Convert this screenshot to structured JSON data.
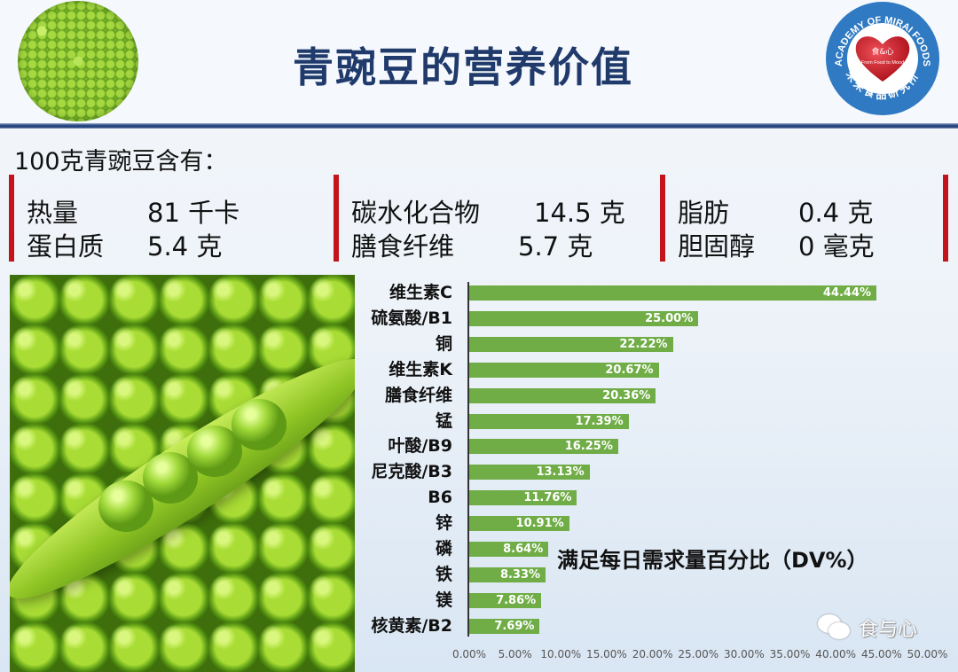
{
  "header": {
    "title": "青豌豆的营养价值",
    "logo": {
      "arc_text_top": "ACADEMY OF MIRAI FOODS",
      "arc_text_bottom": "未来食品研究所",
      "heart_text_cn": "食&心",
      "heart_text_en": "From Food to Mood"
    }
  },
  "nutrition": {
    "heading": "100克青豌豆含有：",
    "groups": [
      {
        "rows": [
          {
            "name": "热量",
            "value": "81 千卡"
          },
          {
            "name": "蛋白质",
            "value": "5.4 克"
          }
        ]
      },
      {
        "rows": [
          {
            "name": "碳水化合物",
            "value": "14.5 克"
          },
          {
            "name": "膳食纤维",
            "value": "5.7 克"
          }
        ]
      },
      {
        "rows": [
          {
            "name": "脂肪",
            "value": "0.4 克"
          },
          {
            "name": "胆固醇",
            "value": "0 毫克"
          }
        ]
      }
    ]
  },
  "chart_data": {
    "type": "bar",
    "orientation": "horizontal",
    "title": "满足每日需求量百分比（DV%）",
    "xlabel": "",
    "ylabel": "",
    "categories": [
      "维生素C",
      "硫氨酸/B1",
      "铜",
      "维生素K",
      "膳食纤维",
      "锰",
      "叶酸/B9",
      "尼克酸/B3",
      "B6",
      "锌",
      "磷",
      "铁",
      "镁",
      "核黄素/B2"
    ],
    "values": [
      44.44,
      25.0,
      22.22,
      20.67,
      20.36,
      17.39,
      16.25,
      13.13,
      11.76,
      10.91,
      8.64,
      8.33,
      7.86,
      7.69
    ],
    "value_labels": [
      "44.44%",
      "25.00%",
      "22.22%",
      "20.67%",
      "20.36%",
      "17.39%",
      "16.25%",
      "13.13%",
      "11.76%",
      "10.91%",
      "8.64%",
      "8.33%",
      "7.86%",
      "7.69%"
    ],
    "xlim": [
      0,
      50
    ],
    "xticks": [
      "0.00%",
      "5.00%",
      "10.00%",
      "15.00%",
      "20.00%",
      "25.00%",
      "30.00%",
      "35.00%",
      "40.00%",
      "45.00%",
      "50.00%"
    ],
    "grid": false,
    "legend": "none",
    "bar_color": "#70ad47"
  },
  "watermark": {
    "text": "食与心"
  },
  "colors": {
    "title": "#1f3a6b",
    "accent_red": "#c4141b",
    "bar": "#70ad47",
    "logo_blue": "#2f7ac2"
  }
}
